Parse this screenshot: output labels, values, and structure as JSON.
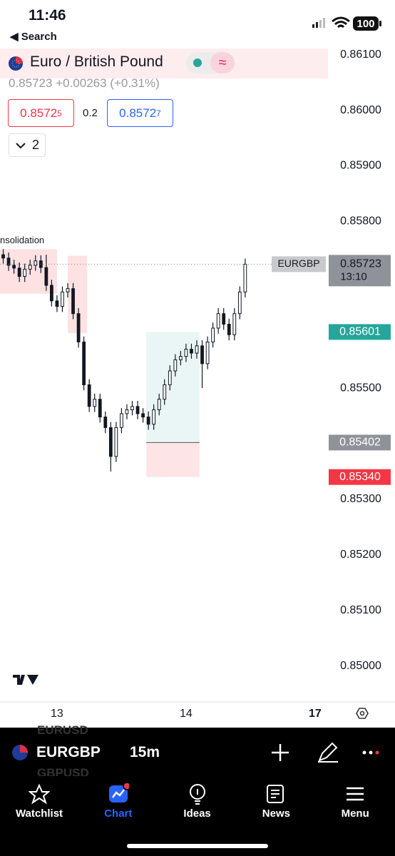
{
  "status_bar": {
    "time": "11:46",
    "back": "Search",
    "battery": "100"
  },
  "header": {
    "symbol": "Euro / British Pound",
    "price": "0.85723",
    "change": "+0.00263 (+0.31%)",
    "sell": {
      "price": "0.8572",
      "pip": "5"
    },
    "spread": "0.2",
    "buy": {
      "price": "0.8572",
      "pip": "7"
    },
    "indicators": "2"
  },
  "chart_data": {
    "type": "candlestick",
    "x": [
      -10,
      -9,
      -8,
      -7,
      -6,
      -5,
      -4,
      -3,
      -2,
      -1,
      0,
      1,
      2,
      3,
      4,
      5,
      6,
      7,
      8,
      9,
      10,
      11,
      12,
      13,
      14,
      15,
      16,
      17,
      18,
      19,
      20,
      21,
      22,
      23,
      24,
      25,
      26,
      27,
      28,
      29,
      30,
      31,
      32,
      33,
      34,
      35
    ],
    "open": [
      0.8574,
      0.85734,
      0.85721,
      0.85716,
      0.85701,
      0.85714,
      0.85721,
      0.85729,
      0.85717,
      0.85685,
      0.85657,
      0.85647,
      0.85673,
      0.85679,
      0.85634,
      0.85583,
      0.85506,
      0.85467,
      0.8548,
      0.85448,
      0.85429,
      0.85377,
      0.85429,
      0.85454,
      0.85461,
      0.85467,
      0.85454,
      0.85448,
      0.85435,
      0.85461,
      0.8548,
      0.85506,
      0.85531,
      0.85551,
      0.85557,
      0.8557,
      0.85563,
      0.85576,
      0.85544,
      0.85583,
      0.85608,
      0.85634,
      0.85615,
      0.85596,
      0.85634,
      0.85673
    ],
    "high": [
      0.8575,
      0.85744,
      0.85731,
      0.85726,
      0.85724,
      0.85731,
      0.85739,
      0.85739,
      0.8574,
      0.85695,
      0.85667,
      0.85683,
      0.85689,
      0.85689,
      0.85644,
      0.85593,
      0.85516,
      0.8549,
      0.8549,
      0.85458,
      0.85439,
      0.85439,
      0.85464,
      0.85471,
      0.85477,
      0.85477,
      0.85464,
      0.85458,
      0.85471,
      0.8549,
      0.85516,
      0.85541,
      0.85561,
      0.85567,
      0.8558,
      0.8558,
      0.85586,
      0.85586,
      0.85593,
      0.85618,
      0.85644,
      0.85644,
      0.85625,
      0.85644,
      0.85683,
      0.85733
    ],
    "low": [
      0.85724,
      0.85711,
      0.85706,
      0.85691,
      0.85691,
      0.85704,
      0.85711,
      0.85707,
      0.85675,
      0.85647,
      0.85637,
      0.85637,
      0.85663,
      0.85624,
      0.85573,
      0.85496,
      0.85457,
      0.85457,
      0.85438,
      0.85419,
      0.8535,
      0.85367,
      0.85419,
      0.85444,
      0.85451,
      0.85444,
      0.85438,
      0.85425,
      0.85425,
      0.85451,
      0.8547,
      0.85496,
      0.85521,
      0.85541,
      0.85547,
      0.85553,
      0.85553,
      0.855,
      0.85534,
      0.85573,
      0.85598,
      0.85605,
      0.85586,
      0.85586,
      0.85624,
      0.85663
    ],
    "close": [
      0.85734,
      0.85721,
      0.85716,
      0.85701,
      0.85714,
      0.85721,
      0.85729,
      0.85717,
      0.85685,
      0.85657,
      0.85647,
      0.85673,
      0.85679,
      0.85634,
      0.85583,
      0.85506,
      0.85467,
      0.8548,
      0.85448,
      0.85429,
      0.85377,
      0.85429,
      0.85454,
      0.85461,
      0.85467,
      0.85454,
      0.85448,
      0.85435,
      0.85461,
      0.8548,
      0.85506,
      0.85531,
      0.85551,
      0.85557,
      0.8557,
      0.85563,
      0.85576,
      0.85544,
      0.85583,
      0.85608,
      0.85634,
      0.85615,
      0.85596,
      0.85634,
      0.85673,
      0.85723
    ],
    "xlim": [
      -10.6,
      50.4
    ],
    "ylim": [
      0.84934,
      0.86115
    ],
    "xticks": [
      {
        "value": 0,
        "label": "13"
      },
      {
        "value": 24,
        "label": "14"
      },
      {
        "value": 48,
        "label": "17"
      }
    ],
    "yticks": [
      {
        "value": 0.861,
        "label": "0.86100"
      },
      {
        "value": 0.86,
        "label": "0.86000"
      },
      {
        "value": 0.859,
        "label": "0.85900"
      },
      {
        "value": 0.858,
        "label": "0.85800"
      },
      {
        "value": 0.857,
        "label": "0.85700"
      },
      {
        "value": 0.856,
        "label": "0.85600"
      },
      {
        "value": 0.855,
        "label": "0.85500"
      },
      {
        "value": 0.854,
        "label": "0.85400"
      },
      {
        "value": 0.853,
        "label": "0.85300"
      },
      {
        "value": 0.852,
        "label": "0.85200"
      },
      {
        "value": 0.851,
        "label": "0.85100"
      },
      {
        "value": 0.85,
        "label": "0.85000"
      }
    ],
    "price_line": {
      "value": 0.85723,
      "label": "EURGBP",
      "countdown": "13:10"
    },
    "position": {
      "x": [
        16.6,
        26.5
      ],
      "entry": 0.85402,
      "target": 0.85601,
      "stop": {
        "value": 0.8534,
        "label": "0.85340"
      }
    },
    "zones": [
      {
        "label": "nsolidation",
        "x": [
          -10.6,
          0
        ],
        "price": [
          0.8575,
          0.8567
        ]
      },
      {
        "x": [
          2,
          5.6
        ],
        "price": [
          0.85738,
          0.85599
        ]
      }
    ]
  },
  "toolbar": {
    "symbol": "EURGBP",
    "interval": "15m",
    "ghost": [
      "EURUSD",
      "GBPUSD"
    ]
  },
  "tabs": [
    "Watchlist",
    "Chart",
    "Ideas",
    "News",
    "Menu"
  ]
}
